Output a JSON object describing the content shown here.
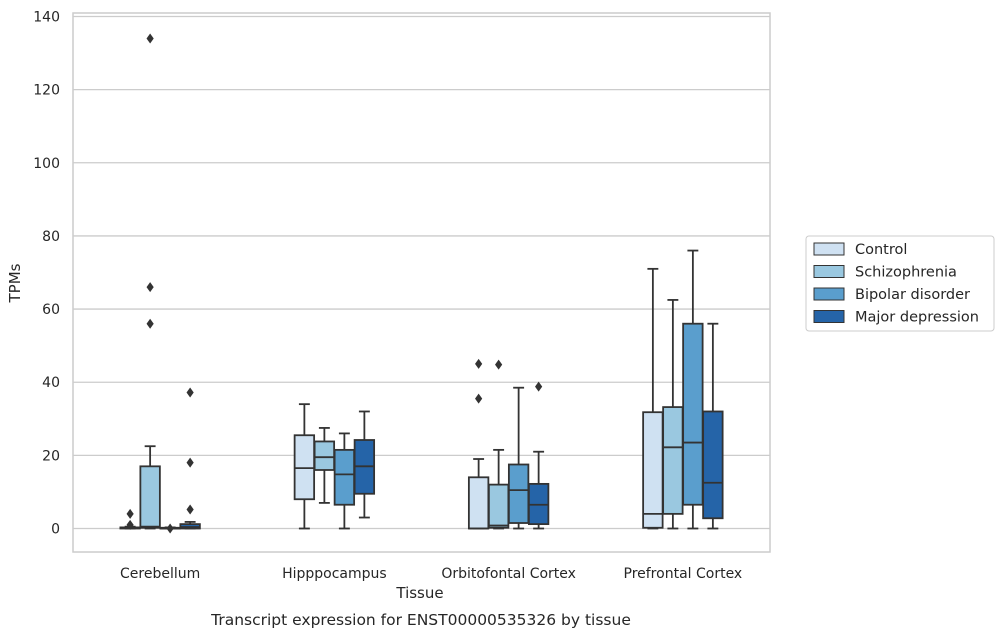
{
  "caption": "Transcript expression for ENST00000535326 by tissue",
  "colors": {
    "Control": "#cfe1f2",
    "Schizophrenia": "#9ac8e0",
    "Bipolar disorder": "#5a9ecd",
    "Major depression": "#2564a8",
    "edge": "#333333",
    "grid": "#cccccc",
    "frame": "#cccccc"
  },
  "chart_data": {
    "type": "box",
    "xlabel": "Tissue",
    "ylabel": "TPMs",
    "ylim": [
      -6.5,
      141.5
    ],
    "yticks": [
      0,
      20,
      40,
      60,
      80,
      100,
      120,
      140
    ],
    "grid": "horizontal",
    "legend_position": "right-center",
    "categories": [
      "Cerebellum",
      "Hipppocampus",
      "Orbitofontal Cortex",
      "Prefrontal Cortex"
    ],
    "series": [
      {
        "name": "Control",
        "boxes": [
          {
            "whislo": 0,
            "q1": 0,
            "med": 0.1,
            "q3": 0.3,
            "whishi": 0.5,
            "fliers": [
              4,
              1
            ]
          },
          {
            "whislo": 0,
            "q1": 8,
            "med": 16.5,
            "q3": 25.5,
            "whishi": 34,
            "fliers": []
          },
          {
            "whislo": 0,
            "q1": 0,
            "med": 0,
            "q3": 14,
            "whishi": 19,
            "fliers": [
              45,
              35.5
            ]
          },
          {
            "whislo": 0,
            "q1": 0.2,
            "med": 4,
            "q3": 31.8,
            "whishi": 71,
            "fliers": []
          }
        ]
      },
      {
        "name": "Schizophrenia",
        "boxes": [
          {
            "whislo": 0,
            "q1": 0.2,
            "med": 0.5,
            "q3": 17,
            "whishi": 22.5,
            "fliers": [
              134,
              66,
              56
            ]
          },
          {
            "whislo": 7,
            "q1": 16,
            "med": 19.5,
            "q3": 23.8,
            "whishi": 27.5,
            "fliers": []
          },
          {
            "whislo": 0,
            "q1": 0.2,
            "med": 0.8,
            "q3": 12,
            "whishi": 21.5,
            "fliers": [
              44.8
            ]
          },
          {
            "whislo": 0,
            "q1": 4,
            "med": 22.2,
            "q3": 33.2,
            "whishi": 62.5,
            "fliers": []
          }
        ]
      },
      {
        "name": "Bipolar disorder",
        "boxes": [
          {
            "whislo": 0,
            "q1": 0,
            "med": 0,
            "q3": 0.2,
            "whishi": 0.3,
            "fliers": [
              0
            ]
          },
          {
            "whislo": 0,
            "q1": 6.5,
            "med": 14.8,
            "q3": 21.5,
            "whishi": 26,
            "fliers": []
          },
          {
            "whislo": 0,
            "q1": 1.5,
            "med": 10.5,
            "q3": 17.5,
            "whishi": 38.5,
            "fliers": []
          },
          {
            "whislo": 0,
            "q1": 6.5,
            "med": 23.5,
            "q3": 56,
            "whishi": 76,
            "fliers": []
          }
        ]
      },
      {
        "name": "Major depression",
        "boxes": [
          {
            "whislo": 0,
            "q1": 0,
            "med": 0.4,
            "q3": 1.2,
            "whishi": 1.8,
            "fliers": [
              37.2,
              18,
              5.2
            ]
          },
          {
            "whislo": 3,
            "q1": 9.5,
            "med": 17,
            "q3": 24.2,
            "whishi": 32,
            "fliers": []
          },
          {
            "whislo": 0,
            "q1": 1.2,
            "med": 6.5,
            "q3": 12.2,
            "whishi": 21,
            "fliers": [
              38.8
            ]
          },
          {
            "whislo": 0,
            "q1": 2.8,
            "med": 12.5,
            "q3": 32,
            "whishi": 56,
            "fliers": []
          }
        ]
      }
    ]
  }
}
